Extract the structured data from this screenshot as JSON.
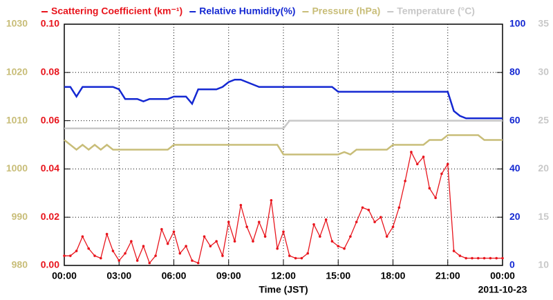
{
  "chart_data": {
    "type": "line",
    "xlabel": "Time (JST)",
    "date_label": "2011-10-23",
    "x": [
      0,
      20,
      40,
      60,
      80,
      100,
      120,
      140,
      160,
      180,
      200,
      220,
      240,
      260,
      280,
      300,
      320,
      340,
      360,
      380,
      400,
      420,
      440,
      460,
      480,
      500,
      520,
      540,
      560,
      580,
      600,
      620,
      640,
      660,
      680,
      700,
      720,
      740,
      760,
      780,
      800,
      820,
      840,
      860,
      880,
      900,
      920,
      940,
      960,
      980,
      1000,
      1020,
      1040,
      1060,
      1080,
      1100,
      1120,
      1140,
      1160,
      1180,
      1200,
      1220,
      1240,
      1260,
      1280,
      1300,
      1320,
      1340,
      1360,
      1380,
      1400,
      1420,
      1440
    ],
    "xlim": [
      0,
      1440
    ],
    "xticks": [
      {
        "value": 0,
        "label": "00:00"
      },
      {
        "value": 180,
        "label": "03:00"
      },
      {
        "value": 360,
        "label": "06:00"
      },
      {
        "value": 540,
        "label": "09:00"
      },
      {
        "value": 720,
        "label": "12:00"
      },
      {
        "value": 900,
        "label": "15:00"
      },
      {
        "value": 1080,
        "label": "18:00"
      },
      {
        "value": 1260,
        "label": "21:00"
      },
      {
        "value": 1440,
        "label": "00:00"
      }
    ],
    "ylim": [
      0,
      0.1
    ],
    "yticks": [
      {
        "value": 0,
        "label": "0.00"
      },
      0.02,
      0.04,
      0.06,
      0.08,
      {
        "value": 0.1,
        "label": "0.10"
      }
    ],
    "y2lim": [
      0,
      100
    ],
    "y2ticks": [
      0,
      20,
      40,
      60,
      80,
      100
    ],
    "y3lim": [
      980,
      1030
    ],
    "y3ticks": [
      980,
      990,
      1000,
      1010,
      1020,
      1030
    ],
    "y4lim": [
      10,
      35
    ],
    "y4ticks": [
      10,
      15,
      20,
      25,
      30,
      35
    ],
    "grid": true,
    "series": [
      {
        "name": "Scattering Coefficient (km⁻¹)",
        "color": "#e8141c",
        "axis": "y",
        "markers": true,
        "values": [
          0.004,
          0.004,
          0.006,
          0.012,
          0.007,
          0.004,
          0.003,
          0.013,
          0.006,
          0.002,
          0.005,
          0.01,
          0.002,
          0.008,
          0.001,
          0.004,
          0.015,
          0.009,
          0.014,
          0.005,
          0.008,
          0.002,
          0.001,
          0.012,
          0.008,
          0.01,
          0.004,
          0.018,
          0.01,
          0.025,
          0.016,
          0.01,
          0.018,
          0.012,
          0.027,
          0.007,
          0.014,
          0.004,
          0.003,
          0.003,
          0.005,
          0.017,
          0.012,
          0.019,
          0.01,
          0.008,
          0.007,
          0.012,
          0.018,
          0.024,
          0.023,
          0.018,
          0.02,
          0.012,
          0.016,
          0.024,
          0.035,
          0.047,
          0.042,
          0.045,
          0.032,
          0.028,
          0.038,
          0.042,
          0.006,
          0.004,
          0.003,
          0.003,
          0.003,
          0.003,
          0.003,
          0.003,
          0.003
        ]
      },
      {
        "name": "Relative Humidity(%)",
        "color": "#1428d2",
        "axis": "y2",
        "values": [
          74,
          74,
          70,
          74,
          74,
          74,
          74,
          74,
          74,
          73,
          69,
          69,
          69,
          68,
          69,
          69,
          69,
          69,
          70,
          70,
          70,
          67,
          73,
          73,
          73,
          73,
          74,
          76,
          77,
          77,
          76,
          75,
          74,
          74,
          74,
          74,
          74,
          74,
          74,
          74,
          74,
          74,
          74,
          74,
          74,
          72,
          72,
          72,
          72,
          72,
          72,
          72,
          72,
          72,
          72,
          72,
          72,
          72,
          72,
          72,
          72,
          72,
          72,
          72,
          64,
          62,
          61,
          61,
          61,
          61,
          61,
          61,
          61
        ]
      },
      {
        "name": "Pressure (hPa)",
        "color": "#c8bd78",
        "axis": "y3",
        "values": [
          1006,
          1005,
          1004,
          1005,
          1004,
          1005,
          1004,
          1005,
          1004,
          1004,
          1004,
          1004,
          1004,
          1004,
          1004,
          1004,
          1004,
          1004,
          1005,
          1005,
          1005,
          1005,
          1005,
          1005,
          1005,
          1005,
          1005,
          1005,
          1005,
          1005,
          1005,
          1005,
          1005,
          1005,
          1005,
          1005,
          1003,
          1003,
          1003,
          1003,
          1003,
          1003,
          1003,
          1003,
          1003,
          1003,
          1003.5,
          1003,
          1004,
          1004,
          1004,
          1004,
          1004,
          1004,
          1005,
          1005,
          1005,
          1005,
          1005,
          1005,
          1006,
          1006,
          1006,
          1007,
          1007,
          1007,
          1007,
          1007,
          1007,
          1006,
          1006,
          1006,
          1006
        ]
      },
      {
        "name": "Temperature (°C)",
        "color": "#c8c8c8",
        "axis": "y4",
        "values": [
          24.2,
          24.2,
          24.2,
          24.2,
          24.2,
          24.2,
          24.2,
          24.2,
          24.2,
          24.2,
          24.2,
          24.2,
          24.2,
          24.2,
          24.2,
          24.2,
          24.2,
          24.2,
          24.2,
          24.2,
          24.2,
          24.2,
          24.2,
          24.2,
          24.2,
          24.2,
          24.2,
          24.2,
          24.2,
          24.2,
          24.2,
          24.2,
          24.2,
          24.2,
          24.2,
          24.2,
          24.2,
          25,
          25,
          25,
          25,
          25,
          25,
          25,
          25,
          25,
          25,
          25,
          25,
          25,
          25,
          25,
          25,
          25,
          25,
          25,
          25,
          25,
          25,
          25,
          25,
          25,
          25,
          25,
          25,
          25,
          25,
          25,
          25,
          25,
          25,
          25,
          25
        ]
      }
    ]
  }
}
